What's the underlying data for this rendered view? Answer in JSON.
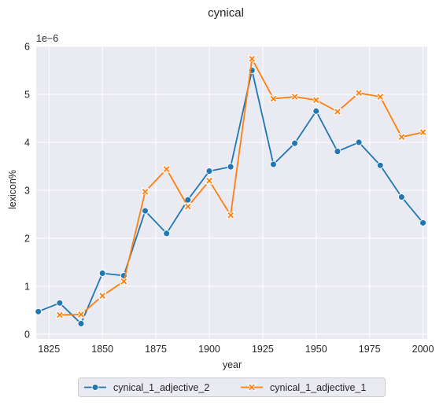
{
  "chart_data": {
    "type": "line",
    "title": "cynical",
    "xlabel": "year",
    "ylabel": "lexicon%",
    "y_offset_label": "1e−6",
    "xlim": [
      1819,
      2002
    ],
    "ylim": [
      -0.1,
      6.0
    ],
    "y_scale_factor": 1e-06,
    "x_ticks": [
      1825,
      1850,
      1875,
      1900,
      1925,
      1950,
      1975,
      2000
    ],
    "x_tick_labels": [
      "1825",
      "1850",
      "1875",
      "1900",
      "1925",
      "1950",
      "1975",
      "2000"
    ],
    "y_ticks": [
      0,
      1,
      2,
      3,
      4,
      5,
      6
    ],
    "y_tick_labels": [
      "0",
      "1",
      "2",
      "3",
      "4",
      "5",
      "6"
    ],
    "grid": true,
    "legend_position": "bottom-center",
    "series": [
      {
        "name": "cynical_1_adjective_2",
        "color": "#1f77b4",
        "marker": "circle",
        "x": [
          1820,
          1830,
          1840,
          1850,
          1860,
          1870,
          1880,
          1890,
          1900,
          1910,
          1920,
          1930,
          1940,
          1950,
          1960,
          1970,
          1980,
          1990,
          2000
        ],
        "y": [
          0.47,
          0.65,
          0.22,
          1.27,
          1.22,
          2.57,
          2.1,
          2.8,
          3.4,
          3.49,
          5.5,
          3.54,
          3.98,
          4.65,
          3.81,
          4.0,
          3.52,
          2.86,
          2.32
        ]
      },
      {
        "name": "cynical_1_adjective_1",
        "color": "#ff7f0e",
        "marker": "x",
        "x": [
          1830,
          1840,
          1850,
          1860,
          1870,
          1880,
          1890,
          1900,
          1910,
          1920,
          1930,
          1940,
          1950,
          1960,
          1970,
          1980,
          1990,
          2000
        ],
        "y": [
          0.4,
          0.41,
          0.8,
          1.1,
          2.97,
          3.44,
          2.66,
          3.2,
          2.48,
          5.74,
          4.91,
          4.95,
          4.88,
          4.64,
          5.03,
          4.95,
          4.11,
          4.21
        ]
      }
    ]
  }
}
